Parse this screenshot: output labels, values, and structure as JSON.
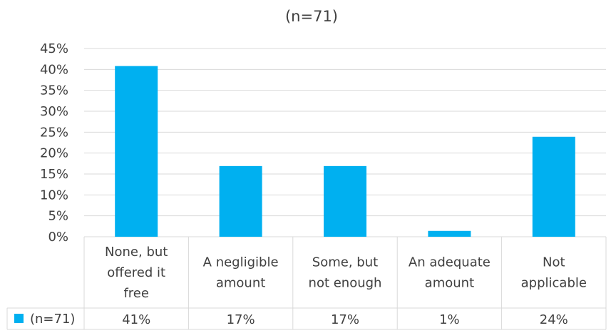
{
  "chart_data": {
    "type": "bar",
    "title": "(n=71)",
    "xlabel": "",
    "ylabel": "",
    "ylim": [
      0,
      45
    ],
    "yticks": [
      "0%",
      "5%",
      "10%",
      "15%",
      "20%",
      "25%",
      "30%",
      "35%",
      "40%",
      "45%"
    ],
    "categories": [
      [
        "None, but",
        "offered it",
        "free"
      ],
      [
        "A negligible",
        "amount"
      ],
      [
        "Some, but",
        "not enough"
      ],
      [
        "An adequate",
        "amount"
      ],
      [
        "Not",
        "applicable"
      ]
    ],
    "series": [
      {
        "name": "(n=71)",
        "values": [
          40.8,
          16.9,
          16.9,
          1.4,
          23.9
        ],
        "labels": [
          "41%",
          "17%",
          "17%",
          "1%",
          "24%"
        ],
        "color": "#00B0F0"
      }
    ],
    "grid": true,
    "legend": "data-table-left"
  }
}
